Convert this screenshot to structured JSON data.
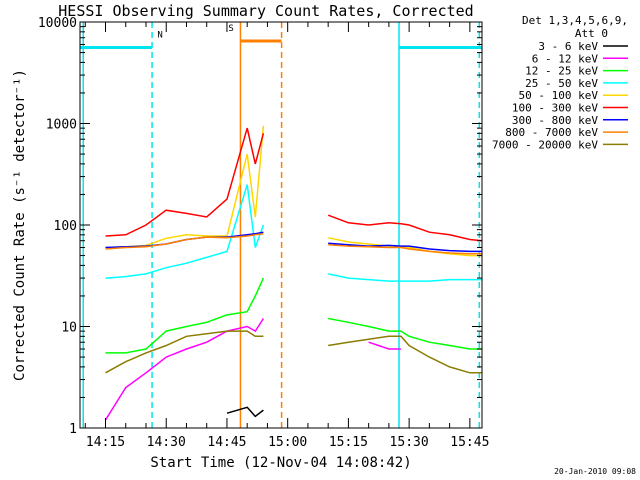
{
  "chart_data": {
    "type": "line",
    "title": "HESSI Observing Summary Count Rates, Corrected",
    "xlabel": "Start Time (12-Nov-04 14:08:42)",
    "ylabel": "Corrected Count Rate (s⁻¹ detector⁻¹)",
    "y_scale": "log",
    "ylim": [
      1,
      10000
    ],
    "xlim": [
      "14:08:42",
      "15:48:00"
    ],
    "y_ticks": [
      "1",
      "10",
      "100",
      "1000",
      "10000"
    ],
    "x_ticks": [
      "14:15",
      "14:30",
      "14:45",
      "15:00",
      "15:15",
      "15:30",
      "15:45"
    ],
    "grid": false,
    "legend_position": "right",
    "legend_header": [
      "Det 1,3,4,5,6,9,",
      "Att 0"
    ],
    "timestamp": "20-Jan-2010 09:08",
    "annotations": [
      {
        "label": "N",
        "color": "#00e5ee",
        "time_ranges": [
          [
            "14:08:42",
            "14:26:30"
          ],
          [
            "15:27:30",
            "15:48:00"
          ]
        ],
        "y": 5600
      },
      {
        "label": "S",
        "color": "#ff7f00",
        "time_ranges": [
          [
            "14:48:30",
            "14:58:30"
          ]
        ],
        "y": 6500
      }
    ],
    "x_day_minutes": [
      848,
      855,
      860,
      865,
      870,
      875,
      880,
      885,
      890,
      892,
      894,
      896,
      898,
      900,
      905,
      910,
      915,
      920,
      925,
      928,
      930,
      935,
      940,
      945,
      948
    ],
    "series": [
      {
        "name": "3 - 6 keV",
        "color": "#000000",
        "values": [
          null,
          null,
          null,
          null,
          null,
          null,
          null,
          1.4,
          1.6,
          1.3,
          1.5,
          null,
          null,
          null,
          null,
          null,
          null,
          null,
          null,
          null,
          null,
          null,
          null,
          null,
          null
        ]
      },
      {
        "name": "6 - 12 keV",
        "color": "#ff00ff",
        "values": [
          null,
          1.2,
          2.5,
          3.5,
          5,
          6,
          7,
          9,
          10,
          9,
          12,
          null,
          null,
          null,
          null,
          null,
          null,
          7,
          6,
          6,
          null,
          null,
          null,
          null,
          null
        ]
      },
      {
        "name": "12 - 25 keV",
        "color": "#00ff00",
        "values": [
          null,
          5.5,
          5.5,
          6,
          9,
          10,
          11,
          13,
          14,
          20,
          30,
          null,
          null,
          null,
          null,
          12,
          11,
          10,
          9,
          9,
          8,
          7,
          6.5,
          6,
          6
        ]
      },
      {
        "name": "25 - 50 keV",
        "color": "#00ffff",
        "values": [
          null,
          30,
          31,
          33,
          38,
          42,
          48,
          55,
          250,
          60,
          100,
          null,
          null,
          null,
          null,
          33,
          30,
          29,
          28,
          28,
          28,
          28,
          29,
          29,
          29
        ]
      },
      {
        "name": "50 - 100 keV",
        "color": "#ffd700",
        "values": [
          null,
          60,
          61,
          63,
          74,
          80,
          78,
          78,
          500,
          120,
          950,
          null,
          null,
          null,
          null,
          75,
          68,
          65,
          62,
          61,
          60,
          55,
          52,
          50,
          50
        ]
      },
      {
        "name": "100 - 300 keV",
        "color": "#ff0000",
        "values": [
          null,
          78,
          80,
          100,
          140,
          130,
          120,
          180,
          900,
          400,
          800,
          null,
          null,
          null,
          null,
          125,
          105,
          100,
          105,
          103,
          100,
          85,
          80,
          72,
          70
        ]
      },
      {
        "name": "300 - 800 keV",
        "color": "#0000ff",
        "values": [
          null,
          60,
          61,
          62,
          65,
          72,
          76,
          76,
          80,
          82,
          85,
          null,
          null,
          null,
          null,
          66,
          64,
          62,
          63,
          62,
          62,
          58,
          56,
          55,
          55
        ]
      },
      {
        "name": "800 - 7000 keV",
        "color": "#ff7f00",
        "values": [
          null,
          58,
          60,
          61,
          65,
          72,
          76,
          75,
          78,
          80,
          82,
          null,
          null,
          null,
          null,
          64,
          62,
          61,
          60,
          60,
          58,
          55,
          53,
          52,
          52
        ]
      },
      {
        "name": "7000 - 20000 keV",
        "color": "#8b7d00",
        "values": [
          null,
          3.5,
          4.5,
          5.5,
          6.5,
          8,
          8.5,
          9,
          9,
          8,
          8,
          null,
          null,
          null,
          null,
          6.5,
          7,
          7.5,
          8,
          8,
          6.5,
          5,
          4,
          3.5,
          3.5
        ]
      }
    ],
    "vertical_markers": [
      {
        "time": "14:09:30",
        "color": "#00e5ee",
        "style": "solid"
      },
      {
        "time": "14:26:30",
        "color": "#00e5ee",
        "style": "dashed"
      },
      {
        "time": "14:48:20",
        "color": "#ff7f00",
        "style": "solid"
      },
      {
        "time": "14:58:30",
        "color": "#ff7f00",
        "style": "dashed"
      },
      {
        "time": "15:27:30",
        "color": "#00e5ee",
        "style": "solid"
      },
      {
        "time": "15:47:20",
        "color": "#00e5ee",
        "style": "dashed"
      }
    ]
  }
}
